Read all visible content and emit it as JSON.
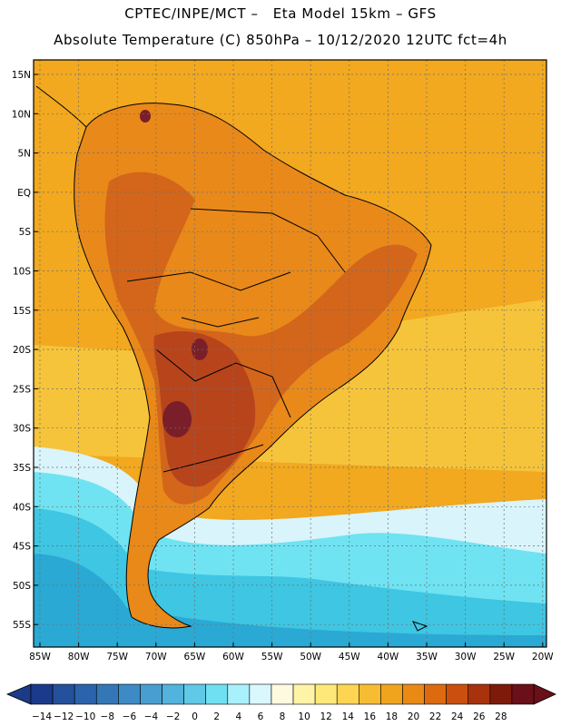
{
  "title_line1": "CPTEC/INPE/MCT –   Eta Model 15km – GFS",
  "title_line2": "Absolute Temperature (C) 850hPa – 10/12/2020 12UTC fct=4h",
  "lat_labels": [
    "15N",
    "10N",
    "5N",
    "EQ",
    "5S",
    "10S",
    "15S",
    "20S",
    "25S",
    "30S",
    "35S",
    "40S",
    "45S",
    "50S",
    "55S"
  ],
  "lon_labels": [
    "85W",
    "80W",
    "75W",
    "70W",
    "65W",
    "60W",
    "55W",
    "50W",
    "45W",
    "40W",
    "35W",
    "30W",
    "25W",
    "20W"
  ],
  "colorbar": {
    "labels": [
      "-14",
      "-12",
      "-10",
      "-8",
      "-6",
      "-4",
      "-2",
      "0",
      "2",
      "4",
      "6",
      "8",
      "10",
      "12",
      "14",
      "16",
      "18",
      "20",
      "22",
      "24",
      "26",
      "28"
    ],
    "colors": [
      "#1b3a8a",
      "#24509c",
      "#2c64ab",
      "#3477b7",
      "#3d8ac4",
      "#489ed0",
      "#52b3dc",
      "#5fc9e7",
      "#6fe0f2",
      "#a8f0fb",
      "#d9f7fd",
      "#fff9e0",
      "#fff3a6",
      "#ffe87a",
      "#fdd552",
      "#f6bd33",
      "#f0a41d",
      "#e98a14",
      "#dd6a10",
      "#c9500e",
      "#a8320c",
      "#7d1a0a",
      "#6b0f18"
    ]
  },
  "map_colors": {
    "ocean_warm": "#f2a81f",
    "ocean_cool": "#f6c43a",
    "land_warm": "#e8891a",
    "land_hot": "#d3661a",
    "land_very_hot": "#b8441c",
    "land_extreme": "#7a1f2a",
    "cold_band": "#d9f4fb",
    "cold_cyan": "#6fe3f2",
    "cold_blue": "#3ec6e2",
    "cold_deep": "#2aa9d4"
  }
}
